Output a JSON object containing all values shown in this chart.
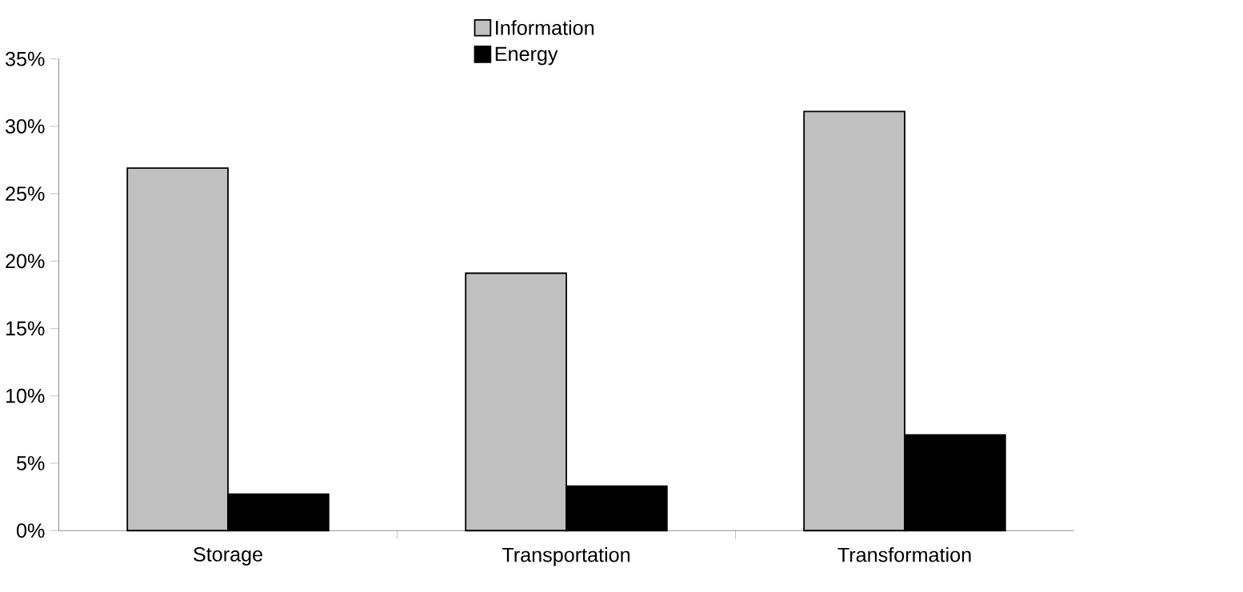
{
  "chart_data": {
    "type": "bar",
    "categories": [
      "Storage",
      "Transportation",
      "Transformation"
    ],
    "series": [
      {
        "name": "Information",
        "color": "#c0c0c0",
        "values": [
          26.9,
          19.1,
          31.1
        ]
      },
      {
        "name": "Energy",
        "color": "#000000",
        "values": [
          2.7,
          3.3,
          7.1
        ]
      }
    ],
    "ylim": [
      0,
      35
    ],
    "yticks": [
      {
        "value": 0,
        "label": "0%"
      },
      {
        "value": 5,
        "label": "5%"
      },
      {
        "value": 10,
        "label": "10%"
      },
      {
        "value": 15,
        "label": "15%"
      },
      {
        "value": 20,
        "label": "20%"
      },
      {
        "value": 25,
        "label": "25%"
      },
      {
        "value": 30,
        "label": "30%"
      },
      {
        "value": 35,
        "label": "35%"
      }
    ],
    "grid": false,
    "legend": "top"
  }
}
